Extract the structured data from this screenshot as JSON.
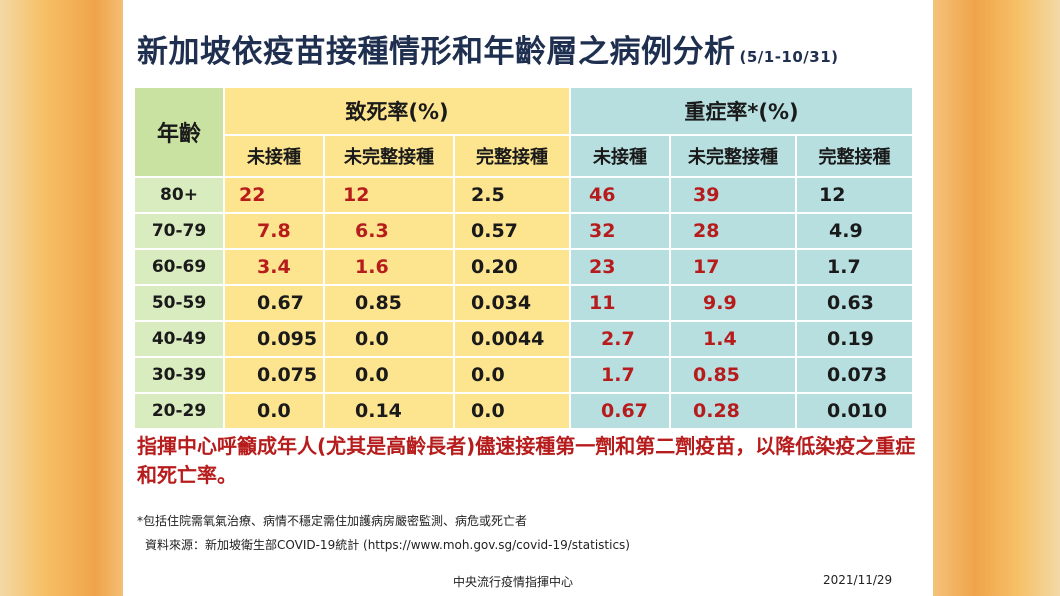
{
  "title": "新加坡依疫苗接種情形和年齡層之病例分析",
  "period": "(5/1-10/31)",
  "table": {
    "age_header": "年齡",
    "fatality_header": "致死率(%)",
    "severe_header": "重症率*(%)",
    "sub_headers": [
      "未接種",
      "未完整接種",
      "完整接種",
      "未接種",
      "未完整接種",
      "完整接種"
    ],
    "rows": [
      {
        "age": "80+",
        "values": [
          "22",
          "12",
          "2.5",
          "46",
          "39",
          "12"
        ]
      },
      {
        "age": "70-79",
        "values": [
          "7.8",
          "6.3",
          "0.57",
          "32",
          "28",
          "4.9"
        ]
      },
      {
        "age": "60-69",
        "values": [
          "3.4",
          "1.6",
          "0.20",
          "23",
          "17",
          "1.7"
        ]
      },
      {
        "age": "50-59",
        "values": [
          "0.67",
          "0.85",
          "0.034",
          "11",
          "9.9",
          "0.63"
        ]
      },
      {
        "age": "40-49",
        "values": [
          "0.095",
          "0.0",
          "0.0044",
          "2.7",
          "1.4",
          "0.19"
        ]
      },
      {
        "age": "30-39",
        "values": [
          "0.075",
          "0.0",
          "0.0",
          "1.7",
          "0.85",
          "0.073"
        ]
      },
      {
        "age": "20-29",
        "values": [
          "0.0",
          "0.14",
          "0.0",
          "0.67",
          "0.28",
          "0.010"
        ]
      }
    ],
    "highlight_color": "#b71c1c"
  },
  "note": "指揮中心呼籲成年人(尤其是高齡長者)儘速接種第一劑和第二劑疫苗，以降低染疫之重症和死亡率。",
  "footnote": "*包括住院需氧氣治療、病情不穩定需住加護病房嚴密監測、病危或死亡者",
  "source": "資料來源：新加坡衛生部COVID-19統計 (https://www.moh.gov.sg/covid-19/statistics)",
  "organization": "中央流行疫情指揮中心",
  "date": "2021/11/29"
}
